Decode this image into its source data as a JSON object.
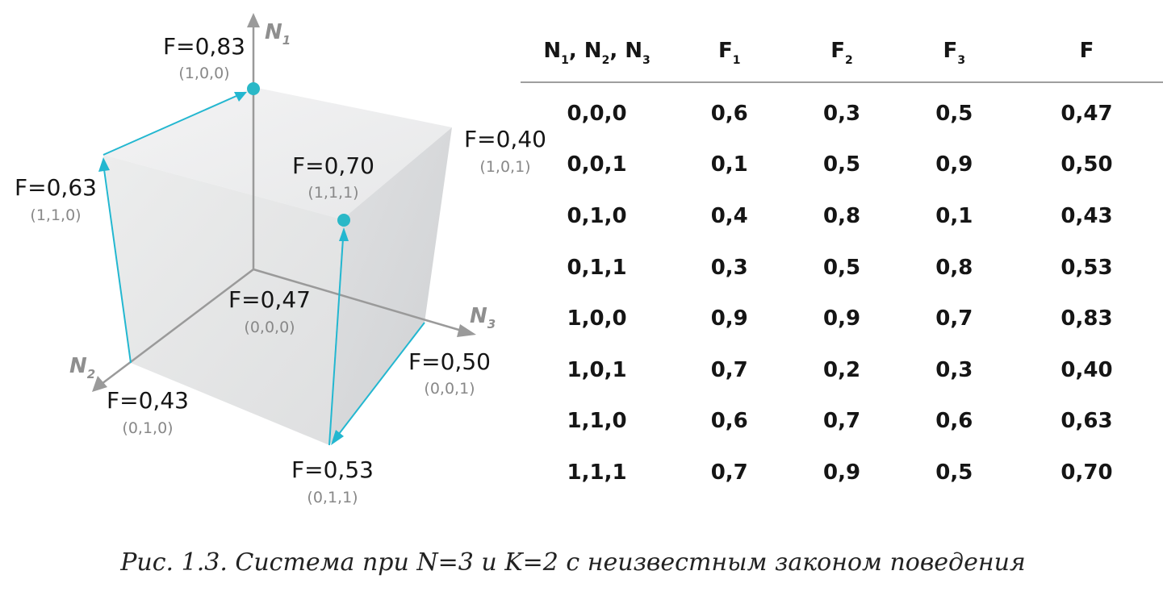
{
  "axes": {
    "n1": {
      "letter": "N",
      "sub": "1"
    },
    "n2": {
      "letter": "N",
      "sub": "2"
    },
    "n3": {
      "letter": "N",
      "sub": "3"
    }
  },
  "vertices": {
    "v100": {
      "f": "F=0,83",
      "coord": "(1,0,0)"
    },
    "v101": {
      "f": "F=0,40",
      "coord": "(1,0,1)"
    },
    "v111": {
      "f": "F=0,70",
      "coord": "(1,1,1)"
    },
    "v110": {
      "f": "F=0,63",
      "coord": "(1,1,0)"
    },
    "v000": {
      "f": "F=0,47",
      "coord": "(0,0,0)"
    },
    "v001": {
      "f": "F=0,50",
      "coord": "(0,0,1)"
    },
    "v010": {
      "f": "F=0,43",
      "coord": "(0,1,0)"
    },
    "v011": {
      "f": "F=0,53",
      "coord": "(0,1,1)"
    }
  },
  "colors": {
    "path": "#23b7d0",
    "vertex": "#2ab8c7",
    "axis": "#9a9a9a"
  },
  "table": {
    "headers": [
      {
        "parts": [
          [
            "N",
            "1"
          ],
          [
            "N",
            "2"
          ],
          [
            "N",
            "3"
          ]
        ]
      },
      {
        "letter": "F",
        "sub": "1"
      },
      {
        "letter": "F",
        "sub": "2"
      },
      {
        "letter": "F",
        "sub": "3"
      },
      {
        "letter": "F",
        "sub": ""
      }
    ],
    "rows": [
      [
        "0,0,0",
        "0,6",
        "0,3",
        "0,5",
        "0,47"
      ],
      [
        "0,0,1",
        "0,1",
        "0,5",
        "0,9",
        "0,50"
      ],
      [
        "0,1,0",
        "0,4",
        "0,8",
        "0,1",
        "0,43"
      ],
      [
        "0,1,1",
        "0,3",
        "0,5",
        "0,8",
        "0,53"
      ],
      [
        "1,0,0",
        "0,9",
        "0,9",
        "0,7",
        "0,83"
      ],
      [
        "1,0,1",
        "0,7",
        "0,2",
        "0,3",
        "0,40"
      ],
      [
        "1,1,0",
        "0,6",
        "0,7",
        "0,6",
        "0,63"
      ],
      [
        "1,1,1",
        "0,7",
        "0,9",
        "0,5",
        "0,70"
      ]
    ]
  },
  "caption": "Рис. 1.3. Система при  N=3 и K=2 с неизвестным законом поведения"
}
